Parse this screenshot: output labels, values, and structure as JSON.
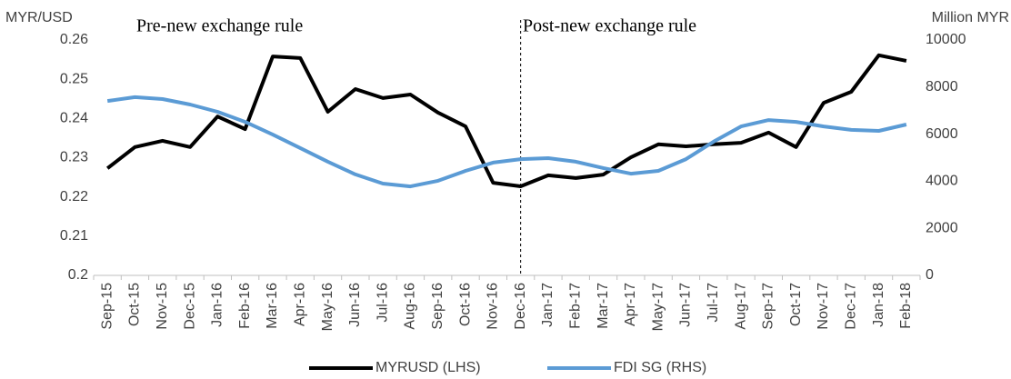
{
  "chart_data": {
    "type": "line",
    "y_label": "MYR/USD",
    "y2_label": "Million MYR",
    "annotations": [
      "Pre-new exchange rule",
      "Post-new exchange rule"
    ],
    "categories": [
      "Sep-15",
      "Oct-15",
      "Nov-15",
      "Dec-15",
      "Jan-16",
      "Feb-16",
      "Mar-16",
      "Apr-16",
      "May-16",
      "Jun-16",
      "Jul-16",
      "Aug-16",
      "Sep-16",
      "Oct-16",
      "Nov-16",
      "Dec-16",
      "Jan-17",
      "Feb-17",
      "Mar-17",
      "Apr-17",
      "May-17",
      "Jun-17",
      "Jul-17",
      "Aug-17",
      "Sep-17",
      "Oct-17",
      "Nov-17",
      "Dec-17",
      "Jan-18",
      "Feb-18"
    ],
    "series": [
      {
        "name": "MYRUSD (LHS)",
        "color": "#000000",
        "axis": "y",
        "values": [
          0.2273,
          0.2327,
          0.2343,
          0.2327,
          0.2405,
          0.2373,
          0.2558,
          0.2554,
          0.2417,
          0.2475,
          0.2452,
          0.2461,
          0.2415,
          0.238,
          0.2236,
          0.2227,
          0.2255,
          0.2248,
          0.2257,
          0.2301,
          0.2334,
          0.2329,
          0.2334,
          0.2338,
          0.2364,
          0.2327,
          0.244,
          0.2468,
          0.2561,
          0.2547
        ]
      },
      {
        "name": "FDI  SG (RHS)",
        "color": "#5b9bd5",
        "axis": "y2",
        "values": [
          7410,
          7570,
          7490,
          7260,
          6950,
          6520,
          5980,
          5410,
          4830,
          4290,
          3900,
          3780,
          4020,
          4440,
          4790,
          4940,
          4980,
          4830,
          4560,
          4320,
          4440,
          4940,
          5680,
          6330,
          6600,
          6520,
          6330,
          6180,
          6140,
          6410
        ]
      }
    ],
    "ylim": [
      0.2,
      0.26
    ],
    "yticks": [
      0.2,
      0.21,
      0.22,
      0.23,
      0.24,
      0.25,
      0.26
    ],
    "y2lim": [
      0,
      10000
    ],
    "y2ticks": [
      0,
      2000,
      4000,
      6000,
      8000,
      10000
    ],
    "grid": false
  }
}
